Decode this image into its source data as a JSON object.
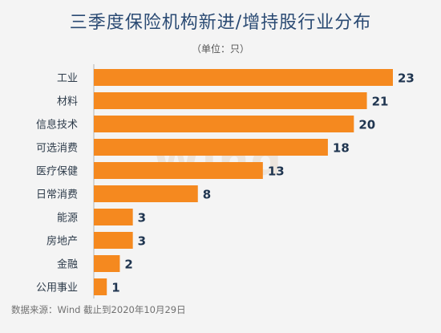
{
  "title": "三季度保险机构新进/增持股行业分布",
  "unit_note": "（单位：只）",
  "watermark": "Wind",
  "source_note": "数据来源：Wind    截止到2020年10月29日",
  "colors": {
    "bar": "#f5891f",
    "axis": "#b5b5b5",
    "text": "#2d3b4a",
    "value": "#1f3550"
  },
  "chart_data": {
    "type": "bar",
    "orientation": "horizontal",
    "categories": [
      "工业",
      "材料",
      "信息技术",
      "可选消费",
      "医疗保健",
      "日常消费",
      "能源",
      "房地产",
      "金融",
      "公用事业"
    ],
    "values": [
      23,
      21,
      20,
      18,
      13,
      8,
      3,
      3,
      2,
      1
    ],
    "title": "三季度保险机构新进/增持股行业分布",
    "xlabel": "",
    "ylabel": "",
    "xlim": [
      0,
      23
    ]
  }
}
